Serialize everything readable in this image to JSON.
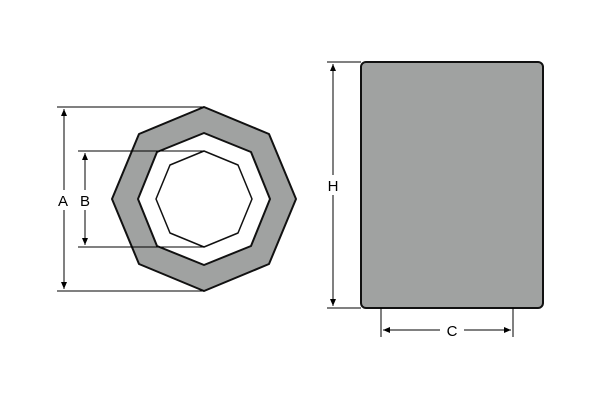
{
  "labels": {
    "a": "A",
    "b": "B",
    "h": "H",
    "c": "C"
  },
  "colors": {
    "body_fill": "#a0a2a1",
    "bore_fill": "#ffffff",
    "line": "#000000",
    "background": "#ffffff"
  }
}
